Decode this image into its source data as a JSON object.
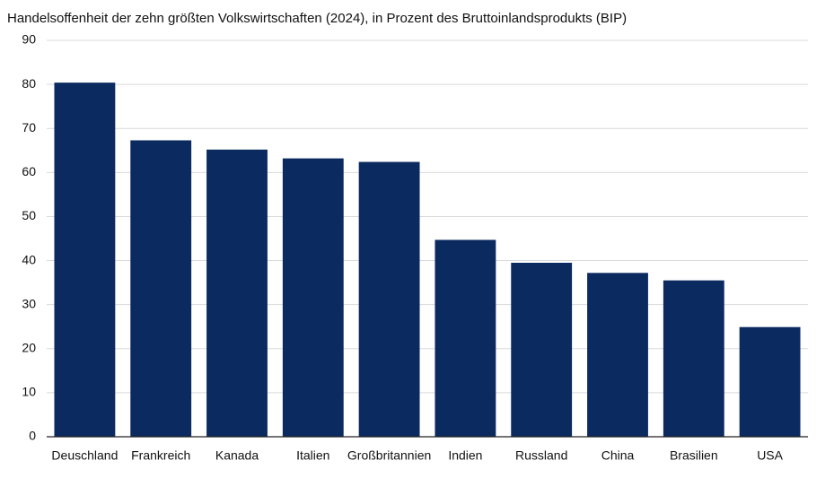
{
  "chart_data": {
    "type": "bar",
    "title": "Handelsoffenheit der zehn größten Volkswirtschaften (2024), in Prozent des Bruttoinlandsprodukts (BIP)",
    "categories": [
      "Deuschland",
      "Frankreich",
      "Kanada",
      "Italien",
      "Großbritannien",
      "Indien",
      "Russland",
      "China",
      "Brasilien",
      "USA"
    ],
    "values": [
      80.4,
      67.3,
      65.2,
      63.2,
      62.4,
      44.7,
      39.5,
      37.2,
      35.5,
      24.9
    ],
    "color": "#0b2a5f",
    "ylim": [
      0,
      90
    ],
    "yticks": [
      0,
      10,
      20,
      30,
      40,
      50,
      60,
      70,
      80,
      90
    ],
    "grid": true
  }
}
